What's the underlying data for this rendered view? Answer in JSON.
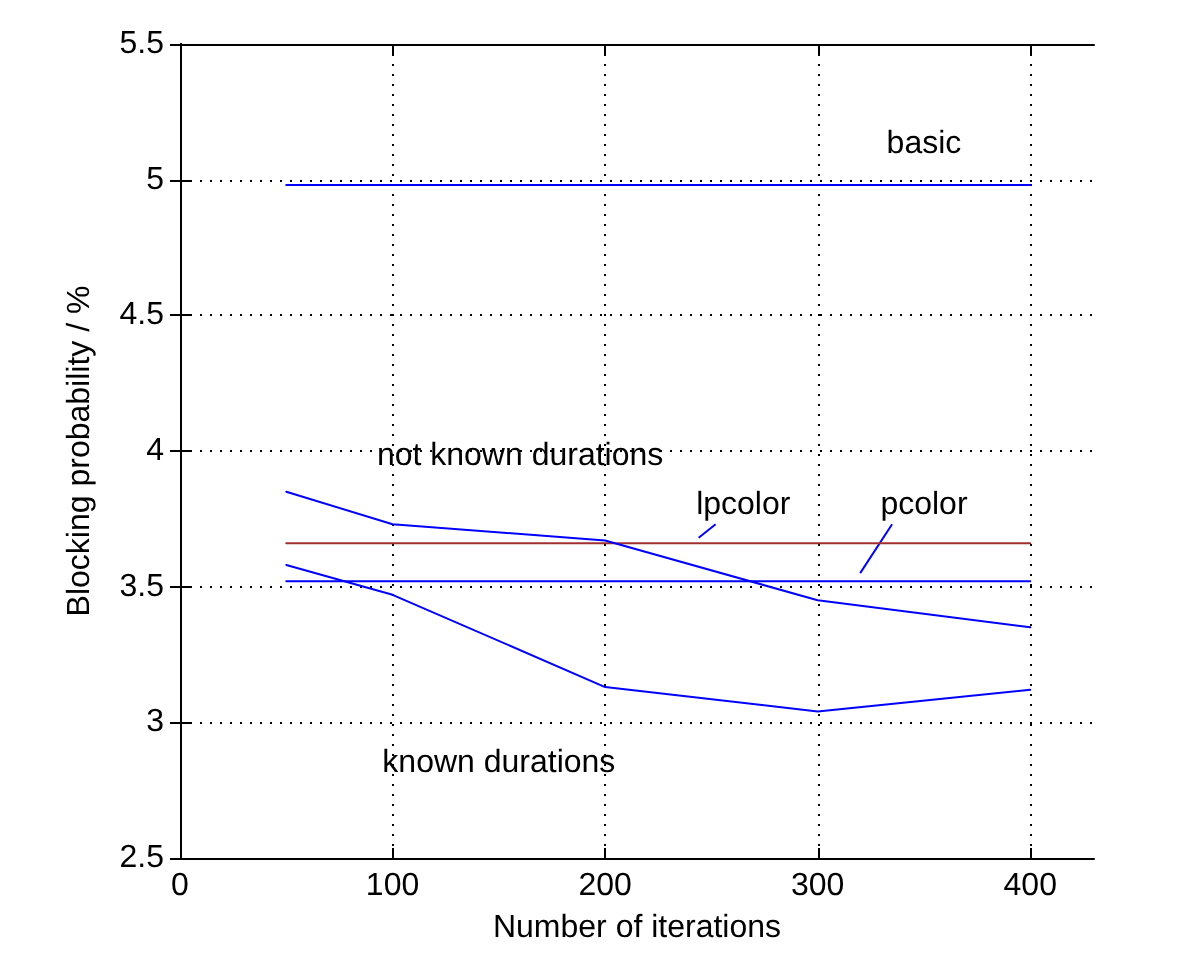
{
  "chart_data": {
    "type": "line",
    "xlabel": "Number of iterations",
    "ylabel": "Blocking probability / %",
    "x": [
      50,
      100,
      200,
      300,
      400
    ],
    "series": [
      {
        "name": "basic",
        "color": "#0000ff",
        "values": [
          4.98,
          4.98,
          4.98,
          4.98,
          4.98
        ]
      },
      {
        "name": "lpcolor",
        "color": "#a03030",
        "values": [
          3.66,
          3.66,
          3.66,
          3.66,
          3.66
        ]
      },
      {
        "name": "pcolor",
        "color": "#0000ff",
        "values": [
          3.52,
          3.52,
          3.52,
          3.52,
          3.52
        ]
      },
      {
        "name": "not known durations",
        "color": "#0000ff",
        "values": [
          3.85,
          3.73,
          3.67,
          3.45,
          3.35
        ]
      },
      {
        "name": "known durations",
        "color": "#0000ff",
        "values": [
          3.58,
          3.47,
          3.13,
          3.04,
          3.12
        ]
      }
    ],
    "xlim": [
      0,
      430
    ],
    "xticks": [
      0,
      100,
      200,
      300,
      400
    ],
    "ylim": [
      2.5,
      5.5
    ],
    "yticks": [
      2.5,
      3,
      3.5,
      4,
      4.5,
      5,
      5.5
    ],
    "grid": true,
    "legend": false,
    "marker": "none",
    "line_style": "solid"
  }
}
